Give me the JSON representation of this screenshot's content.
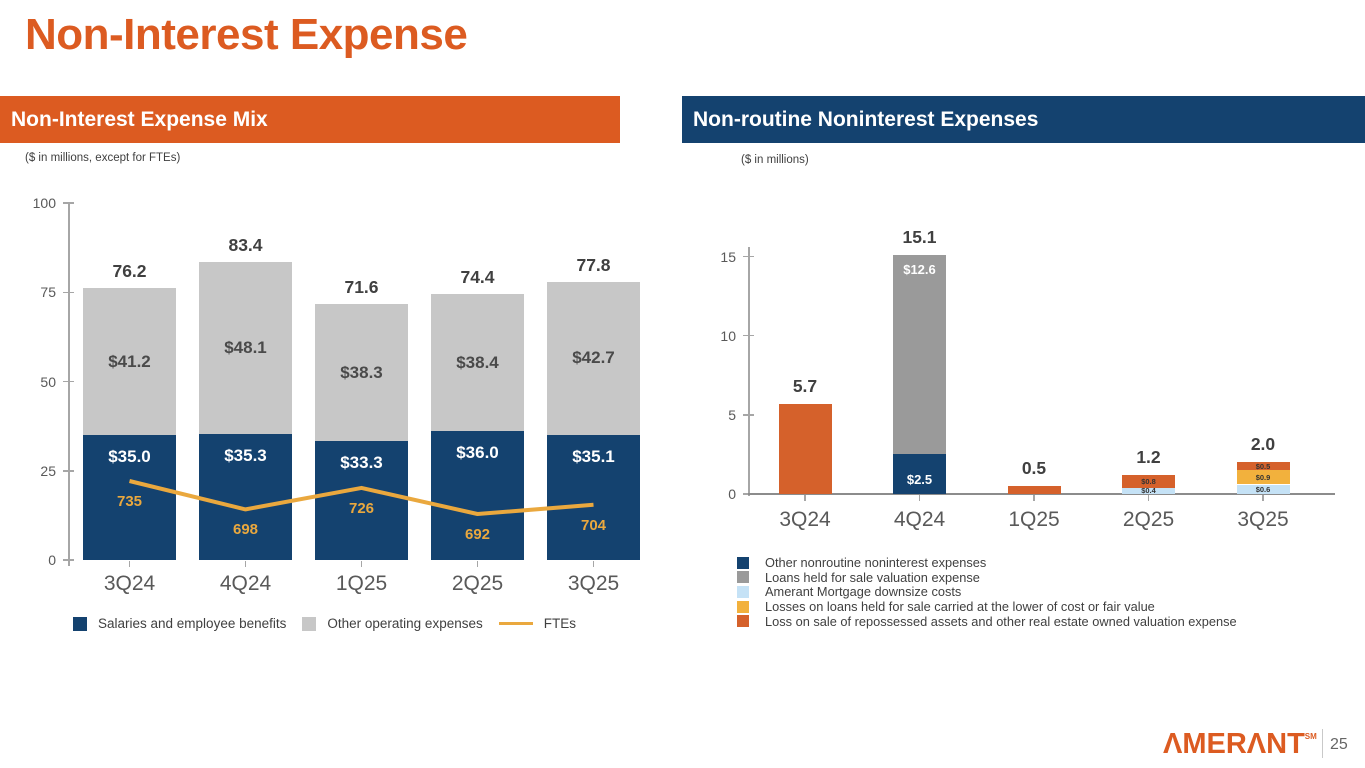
{
  "slide": {
    "title": "Non-Interest Expense",
    "page_number": "25",
    "logo_text": "ΛMERΛNT",
    "logo_mark": "SM"
  },
  "colors": {
    "accent_orange": "#DC5B21",
    "navy": "#14426F",
    "gray_light": "#C7C7C7",
    "gray_dark": "#9A9A9A",
    "light_blue": "#C5E2F6",
    "gold": "#F2B13D",
    "bar_orange": "#D5612B",
    "fte_line": "#EAA83E"
  },
  "left_panel": {
    "header": "Non-Interest Expense Mix",
    "subtitle": "($ in millions, except for FTEs)",
    "legend": [
      {
        "label": "Salaries and employee benefits",
        "color": "#14426F",
        "swatch": "square"
      },
      {
        "label": "Other operating expenses",
        "color": "#C7C7C7",
        "swatch": "square"
      },
      {
        "label": "FTEs",
        "color": "#EAA83E",
        "swatch": "line"
      }
    ]
  },
  "right_panel": {
    "header": "Non-routine Noninterest Expenses",
    "subtitle": "($ in millions)",
    "legend": [
      {
        "label": "Other nonroutine noninterest expenses",
        "color": "#14426F",
        "swatch": "square"
      },
      {
        "label": "Loans held for sale valuation expense",
        "color": "#9A9A9A",
        "swatch": "square"
      },
      {
        "label": "Amerant Mortgage downsize costs",
        "color": "#C5E2F6",
        "swatch": "square"
      },
      {
        "label": "Losses on loans held for sale carried at the lower of cost or fair value",
        "color": "#F2B13D",
        "swatch": "square"
      },
      {
        "label": "Loss on sale of repossessed assets and other real estate owned valuation expense",
        "color": "#D5612B",
        "swatch": "square"
      }
    ]
  },
  "chart_data": [
    {
      "type": "bar",
      "subtype": "stacked-with-line",
      "title": "Non-Interest Expense Mix",
      "units": "$ in millions, except for FTEs",
      "categories": [
        "3Q24",
        "4Q24",
        "1Q25",
        "2Q25",
        "3Q25"
      ],
      "series": [
        {
          "name": "Salaries and employee benefits",
          "color": "#14426F",
          "label_color": "#FFFFFF",
          "values": [
            35.0,
            35.3,
            33.3,
            36.0,
            35.1
          ],
          "labels": [
            "$35.0",
            "$35.3",
            "$33.3",
            "$36.0",
            "$35.1"
          ]
        },
        {
          "name": "Other operating expenses",
          "color": "#C7C7C7",
          "label_color": "#4A4A4A",
          "values": [
            41.2,
            48.1,
            38.3,
            38.4,
            42.7
          ],
          "labels": [
            "$41.2",
            "$48.1",
            "$38.3",
            "$38.4",
            "$42.7"
          ]
        }
      ],
      "totals": [
        76.2,
        83.4,
        71.6,
        74.4,
        77.8
      ],
      "total_labels": [
        "76.2",
        "83.4",
        "71.6",
        "74.4",
        "77.8"
      ],
      "line_series": {
        "name": "FTEs",
        "color": "#EAA83E",
        "values": [
          735,
          698,
          726,
          692,
          704
        ],
        "labels": [
          "735",
          "698",
          "726",
          "692",
          "704"
        ]
      },
      "y_ticks": [
        0,
        25,
        50,
        75,
        100
      ],
      "ylim": [
        0,
        100
      ],
      "grid": false,
      "legend_position": "bottom"
    },
    {
      "type": "bar",
      "subtype": "stacked",
      "title": "Non-routine Noninterest Expenses",
      "units": "$ in millions",
      "categories": [
        "3Q24",
        "4Q24",
        "1Q25",
        "2Q25",
        "3Q25"
      ],
      "bars": [
        {
          "category": "3Q24",
          "total": 5.7,
          "total_label": "5.7",
          "segments": [
            {
              "name": "Loss on sale of repossessed assets and other real estate owned valuation expense",
              "value": 5.7,
              "color": "#D5612B",
              "label": ""
            }
          ]
        },
        {
          "category": "4Q24",
          "total": 15.1,
          "total_label": "15.1",
          "segments": [
            {
              "name": "Other nonroutine noninterest expenses",
              "value": 2.5,
              "color": "#14426F",
              "label": "$2.5",
              "label_color": "#FFFFFF",
              "label_size": 13,
              "label_pos": "bottom"
            },
            {
              "name": "Loans held for sale valuation expense",
              "value": 12.6,
              "color": "#9A9A9A",
              "label": "$12.6",
              "label_color": "#FFFFFF",
              "label_size": 13,
              "label_pos": "top"
            }
          ]
        },
        {
          "category": "1Q25",
          "total": 0.5,
          "total_label": "0.5",
          "segments": [
            {
              "name": "Loss on sale of repossessed assets and other real estate owned valuation expense",
              "value": 0.5,
              "color": "#D5612B",
              "label": ""
            }
          ]
        },
        {
          "category": "2Q25",
          "total": 1.2,
          "total_label": "1.2",
          "segments": [
            {
              "name": "Amerant Mortgage downsize costs",
              "value": 0.4,
              "color": "#C5E2F6",
              "label": "$0.4",
              "label_color": "#333333",
              "label_size": 7.5,
              "label_pos": "center"
            },
            {
              "name": "Loss on sale of repossessed assets and other real estate owned valuation expense",
              "value": 0.8,
              "color": "#D5612B",
              "label": "$0.8",
              "label_color": "#333333",
              "label_size": 7.5,
              "label_pos": "center"
            }
          ]
        },
        {
          "category": "3Q25",
          "total": 2.0,
          "total_label": "2.0",
          "segments": [
            {
              "name": "Amerant Mortgage downsize costs",
              "value": 0.6,
              "color": "#C5E2F6",
              "label": "$0.6",
              "label_color": "#333333",
              "label_size": 7.5,
              "label_pos": "center"
            },
            {
              "name": "Losses on loans held for sale carried at the lower of cost or fair value",
              "value": 0.9,
              "color": "#F2B13D",
              "label": "$0.9",
              "label_color": "#333333",
              "label_size": 7.5,
              "label_pos": "center"
            },
            {
              "name": "Loss on sale of repossessed assets and other real estate owned valuation expense",
              "value": 0.5,
              "color": "#D5612B",
              "label": "$0.5",
              "label_color": "#333333",
              "label_size": 7.5,
              "label_pos": "center"
            }
          ]
        }
      ],
      "y_ticks": [
        0,
        5,
        10,
        15
      ],
      "ylim": [
        0,
        15
      ],
      "grid": false,
      "legend_position": "bottom"
    }
  ]
}
